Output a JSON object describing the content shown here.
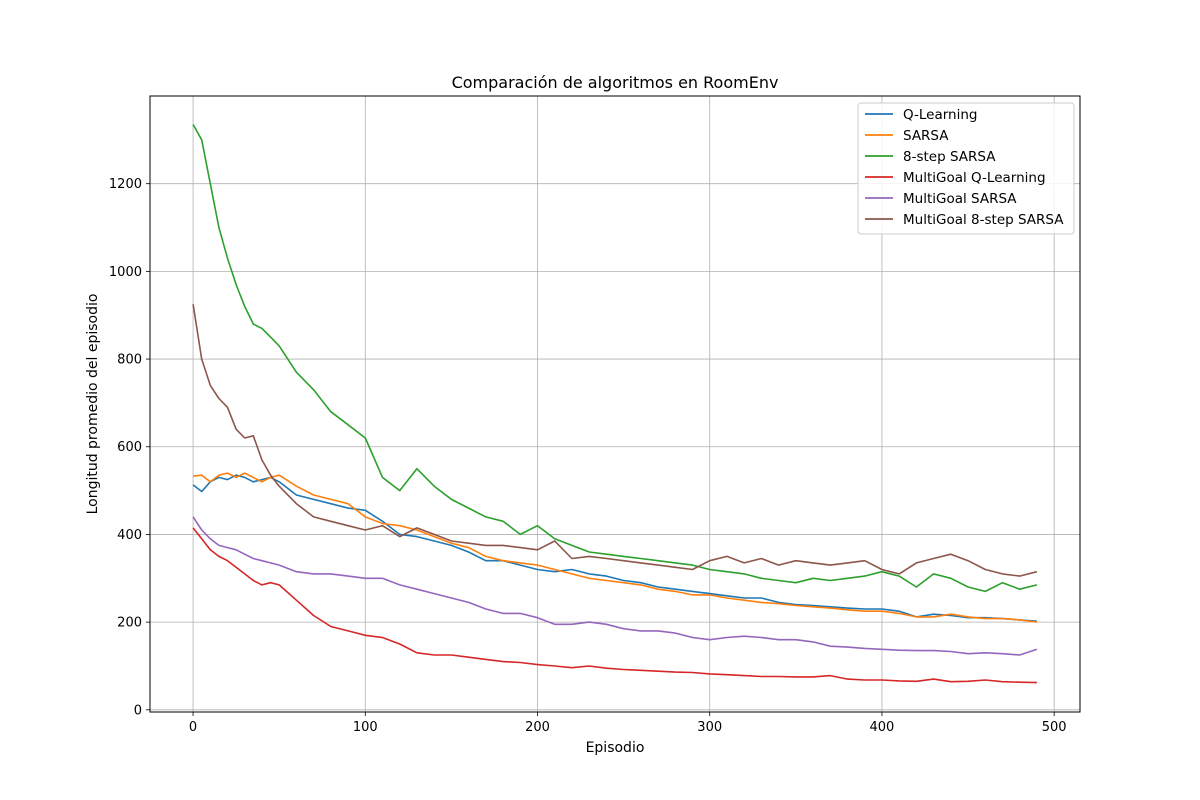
{
  "chart_data": {
    "type": "line",
    "title": "Comparación de algoritmos en RoomEnv",
    "xlabel": "Episodio",
    "ylabel": "Longitud promedio del episodio",
    "xlim": [
      -25,
      515
    ],
    "ylim": [
      -5,
      1400
    ],
    "xticks": [
      "0",
      "100",
      "200",
      "300",
      "400",
      "500"
    ],
    "yticks": [
      "0",
      "200",
      "400",
      "600",
      "800",
      "1000",
      "1200"
    ],
    "grid": true,
    "legend_position": "top-right",
    "x": [
      0,
      5,
      10,
      15,
      20,
      25,
      30,
      35,
      40,
      45,
      50,
      60,
      70,
      80,
      90,
      100,
      110,
      120,
      130,
      140,
      150,
      160,
      170,
      180,
      190,
      200,
      210,
      220,
      230,
      240,
      250,
      260,
      270,
      280,
      290,
      300,
      310,
      320,
      330,
      340,
      350,
      360,
      370,
      380,
      390,
      400,
      410,
      420,
      430,
      440,
      450,
      460,
      470,
      480,
      490
    ],
    "series": [
      {
        "name": "Q-Learning",
        "color": "#1f77b4",
        "values": [
          513,
          498,
          520,
          530,
          525,
          535,
          530,
          520,
          525,
          530,
          520,
          490,
          480,
          470,
          460,
          455,
          430,
          400,
          395,
          385,
          375,
          360,
          340,
          340,
          330,
          320,
          315,
          320,
          310,
          305,
          295,
          290,
          280,
          275,
          270,
          265,
          260,
          255,
          255,
          245,
          240,
          238,
          235,
          232,
          230,
          230,
          225,
          212,
          218,
          215,
          210,
          210,
          208,
          205,
          202
        ]
      },
      {
        "name": "SARSA",
        "color": "#ff7f0e",
        "values": [
          533,
          535,
          520,
          535,
          540,
          530,
          540,
          530,
          520,
          530,
          535,
          510,
          490,
          480,
          470,
          440,
          425,
          420,
          410,
          395,
          380,
          370,
          350,
          340,
          335,
          330,
          320,
          310,
          300,
          295,
          290,
          285,
          275,
          270,
          262,
          262,
          255,
          250,
          245,
          242,
          238,
          235,
          232,
          228,
          225,
          225,
          220,
          212,
          212,
          218,
          212,
          208,
          208,
          205,
          200
        ]
      },
      {
        "name": "8-step SARSA",
        "color": "#2ca02c",
        "values": [
          1335,
          1300,
          1200,
          1100,
          1030,
          970,
          920,
          880,
          870,
          850,
          830,
          770,
          730,
          680,
          650,
          620,
          530,
          500,
          550,
          510,
          480,
          460,
          440,
          430,
          400,
          420,
          390,
          375,
          360,
          355,
          350,
          345,
          340,
          335,
          330,
          320,
          315,
          310,
          300,
          295,
          290,
          300,
          295,
          300,
          305,
          315,
          305,
          280,
          310,
          300,
          280,
          270,
          290,
          275,
          285
        ]
      },
      {
        "name": "MultiGoal Q-Learning",
        "color": "#d62728",
        "values": [
          415,
          390,
          365,
          350,
          340,
          325,
          310,
          295,
          285,
          290,
          285,
          250,
          215,
          190,
          180,
          170,
          165,
          150,
          130,
          125,
          125,
          120,
          115,
          110,
          108,
          103,
          100,
          96,
          100,
          95,
          92,
          90,
          88,
          86,
          85,
          82,
          80,
          78,
          76,
          76,
          75,
          75,
          78,
          70,
          68,
          68,
          66,
          65,
          70,
          64,
          65,
          68,
          64,
          63,
          62
        ]
      },
      {
        "name": "MultiGoal SARSA",
        "color": "#9467bd",
        "values": [
          440,
          410,
          390,
          375,
          370,
          365,
          355,
          345,
          340,
          335,
          330,
          315,
          310,
          310,
          305,
          300,
          300,
          285,
          275,
          265,
          255,
          245,
          230,
          220,
          220,
          210,
          195,
          195,
          200,
          195,
          185,
          180,
          180,
          175,
          165,
          160,
          165,
          168,
          165,
          160,
          160,
          155,
          145,
          143,
          140,
          138,
          136,
          135,
          135,
          133,
          128,
          130,
          128,
          125,
          138
        ]
      },
      {
        "name": "MultiGoal 8-step SARSA",
        "color": "#8c564b",
        "values": [
          925,
          800,
          740,
          710,
          690,
          640,
          620,
          625,
          570,
          535,
          510,
          470,
          440,
          430,
          420,
          410,
          420,
          395,
          415,
          400,
          385,
          380,
          375,
          375,
          370,
          365,
          385,
          345,
          350,
          345,
          340,
          335,
          330,
          325,
          320,
          340,
          350,
          335,
          345,
          330,
          340,
          335,
          330,
          335,
          340,
          320,
          310,
          335,
          345,
          355,
          340,
          320,
          310,
          305,
          315
        ]
      }
    ]
  }
}
